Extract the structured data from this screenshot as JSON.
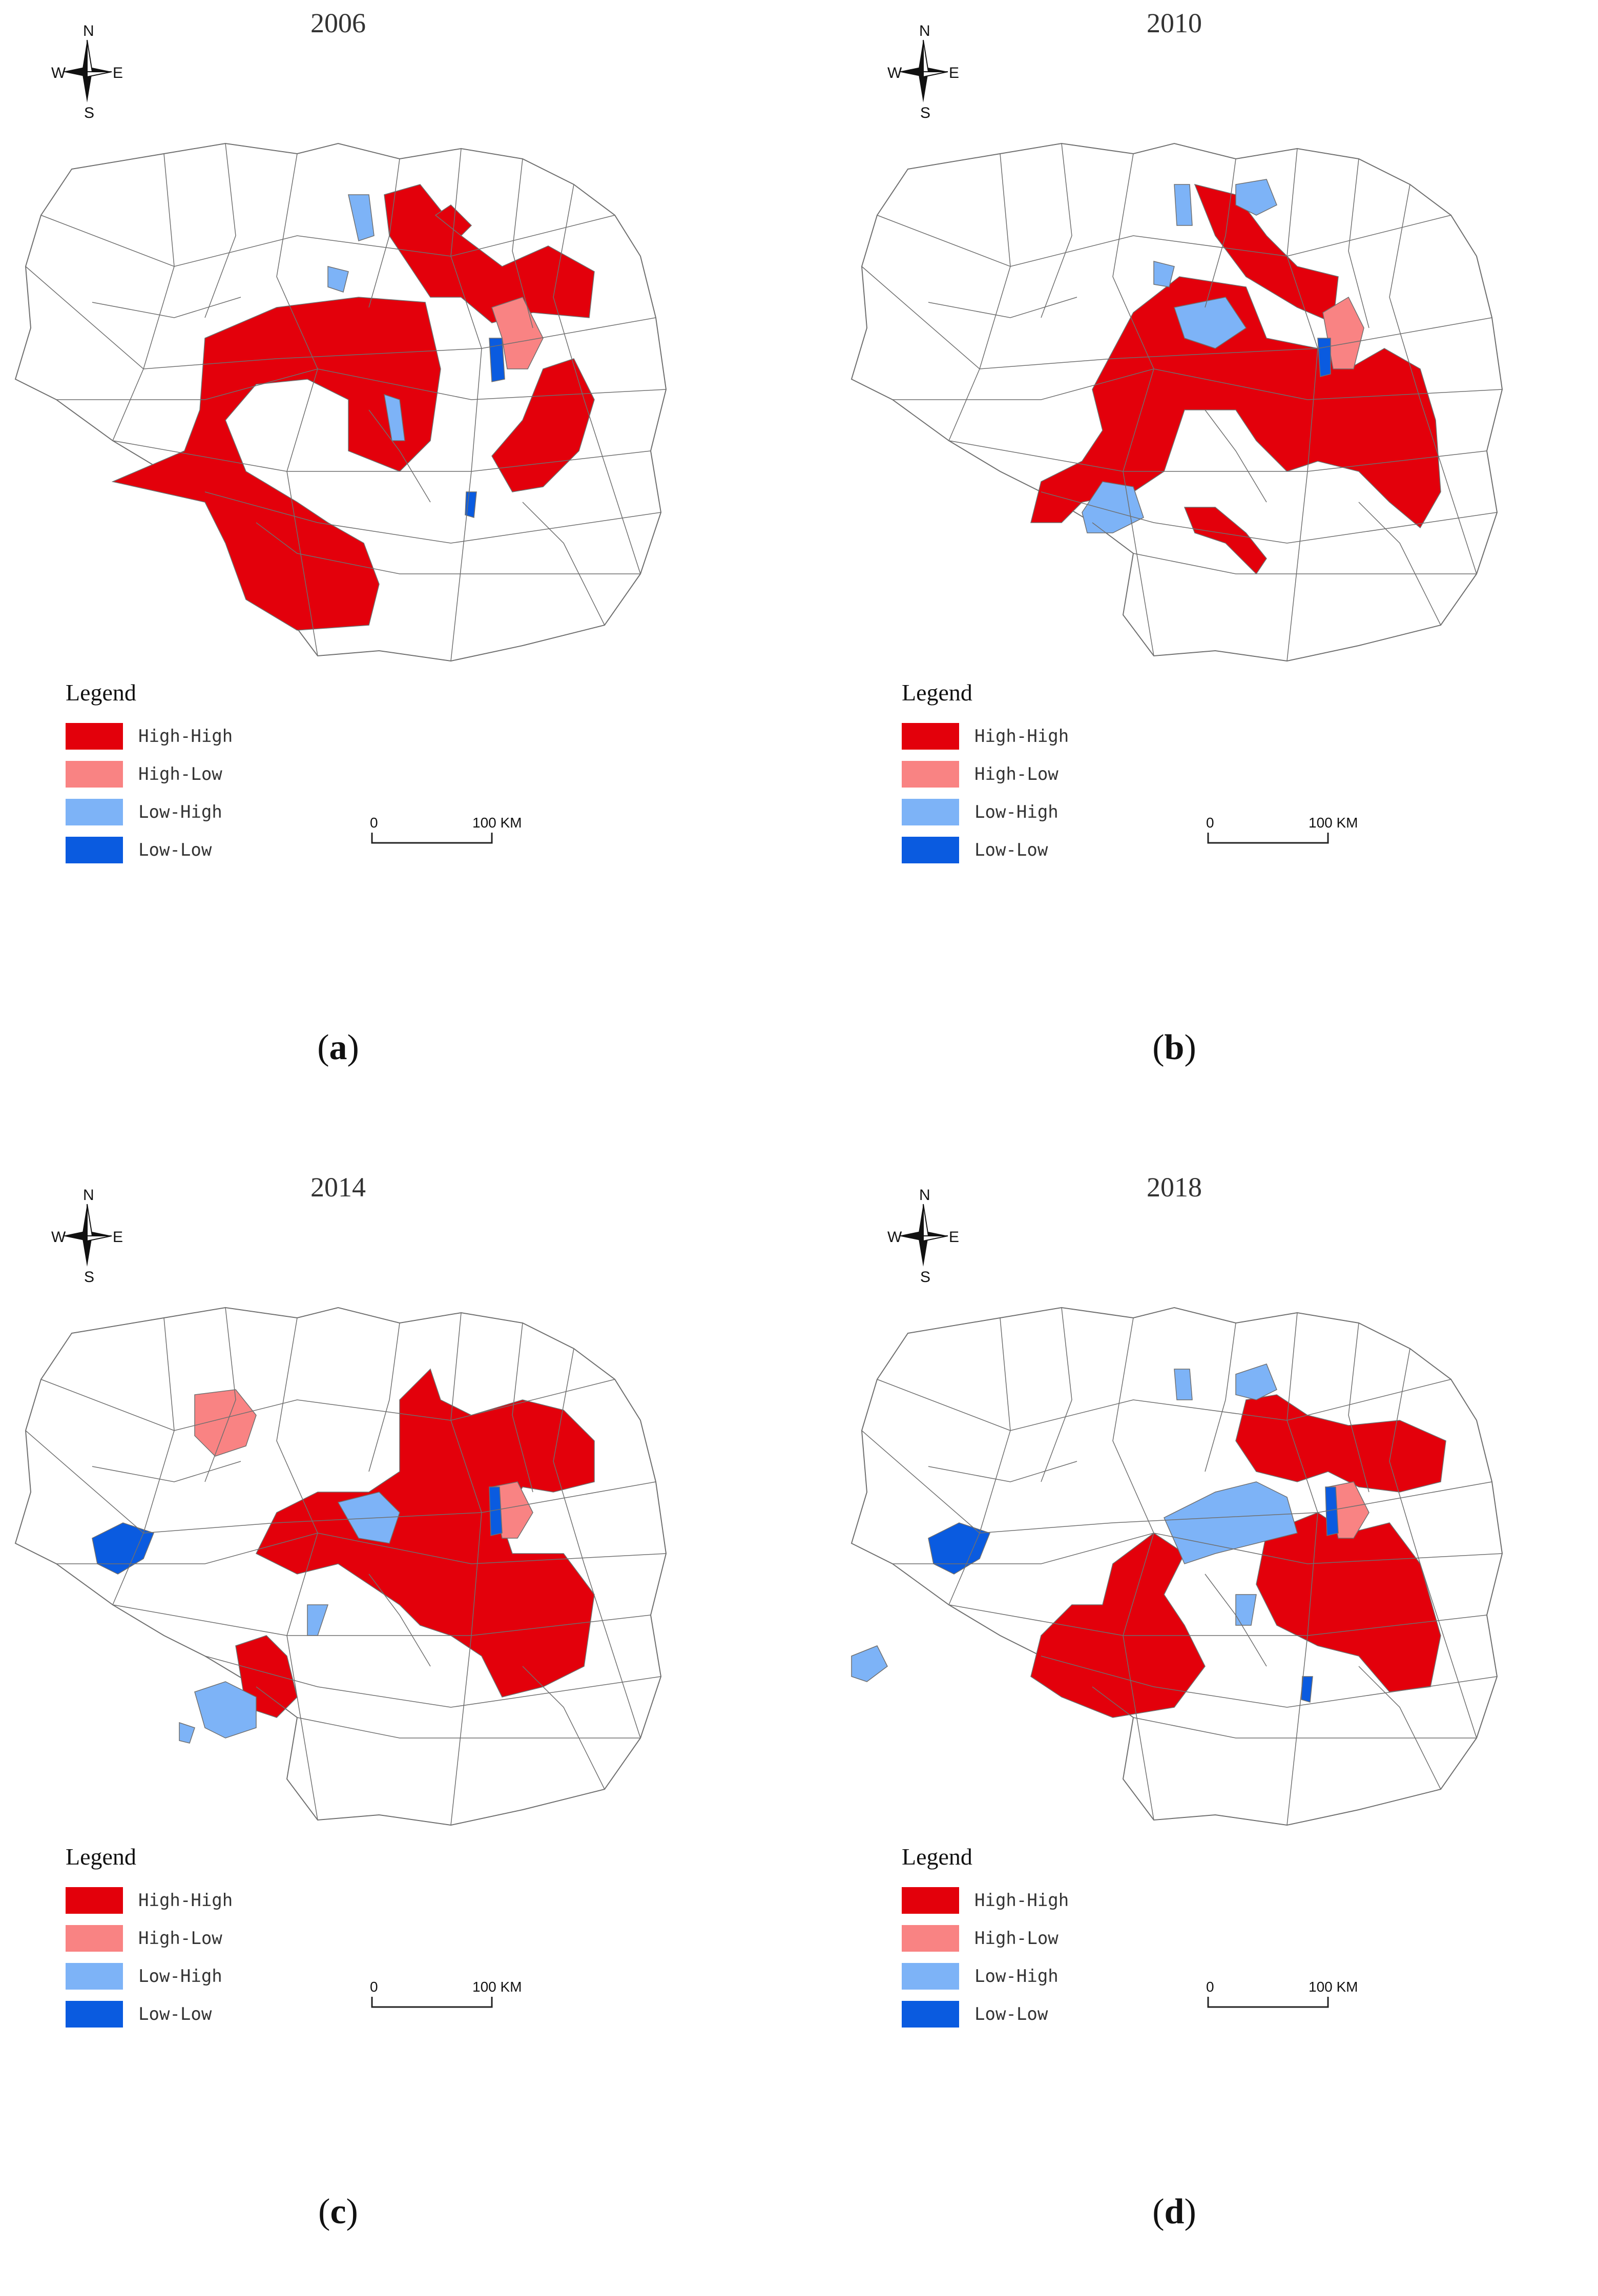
{
  "colors": {
    "high_high": "#e3000b",
    "high_low": "#f98383",
    "low_high": "#7db3f7",
    "low_low": "#0a5be0",
    "outline": "#6f6f6f"
  },
  "compass": {
    "n": "N",
    "s": "S",
    "e": "E",
    "w": "W"
  },
  "legend": {
    "title": "Legend",
    "items": [
      {
        "key": "high_high",
        "label": "High-High"
      },
      {
        "key": "high_low",
        "label": "High-Low"
      },
      {
        "key": "low_high",
        "label": "Low-High"
      },
      {
        "key": "low_low",
        "label": "Low-Low"
      }
    ]
  },
  "scalebar": {
    "start": "0",
    "end": "100 KM"
  },
  "panels": [
    {
      "year": "2006",
      "letter": "a"
    },
    {
      "year": "2010",
      "letter": "b"
    },
    {
      "year": "2014",
      "letter": "c"
    },
    {
      "year": "2018",
      "letter": "d"
    }
  ]
}
